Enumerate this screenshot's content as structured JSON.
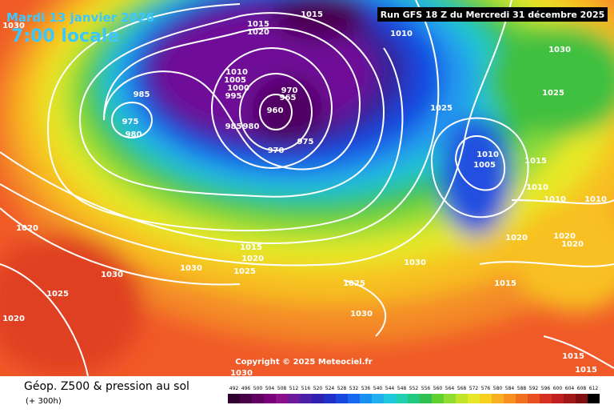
{
  "header": {
    "date": "Mardi 13 janvier 2026",
    "time": "7:00 locale",
    "run": "Run GFS 18 Z du Mercredi 31 décembre 2025"
  },
  "map": {
    "isobar_labels": [
      1015,
      1015,
      1020,
      1010,
      1030,
      1030,
      1025,
      985,
      975,
      980,
      1010,
      1005,
      1000,
      995,
      970,
      965,
      960,
      985,
      980,
      970,
      975,
      1025,
      1010,
      1005,
      1015,
      1010,
      1010,
      1010,
      1020,
      1020,
      1020,
      1020,
      1015,
      1020,
      1025,
      1030,
      1030,
      1030,
      1025,
      1020,
      1025,
      1030,
      1015,
      1030,
      1015,
      1015
    ],
    "copyright": "Copyright © 2025 Meteociel.fr"
  },
  "footer": {
    "title": "Géop. Z500 & pression au sol",
    "lead": "(+ 300h)",
    "scale": [
      492,
      496,
      500,
      504,
      508,
      512,
      516,
      520,
      524,
      528,
      532,
      536,
      540,
      544,
      548,
      552,
      556,
      560,
      564,
      568,
      572,
      576,
      580,
      584,
      588,
      592,
      596,
      600,
      604,
      608,
      612
    ]
  }
}
